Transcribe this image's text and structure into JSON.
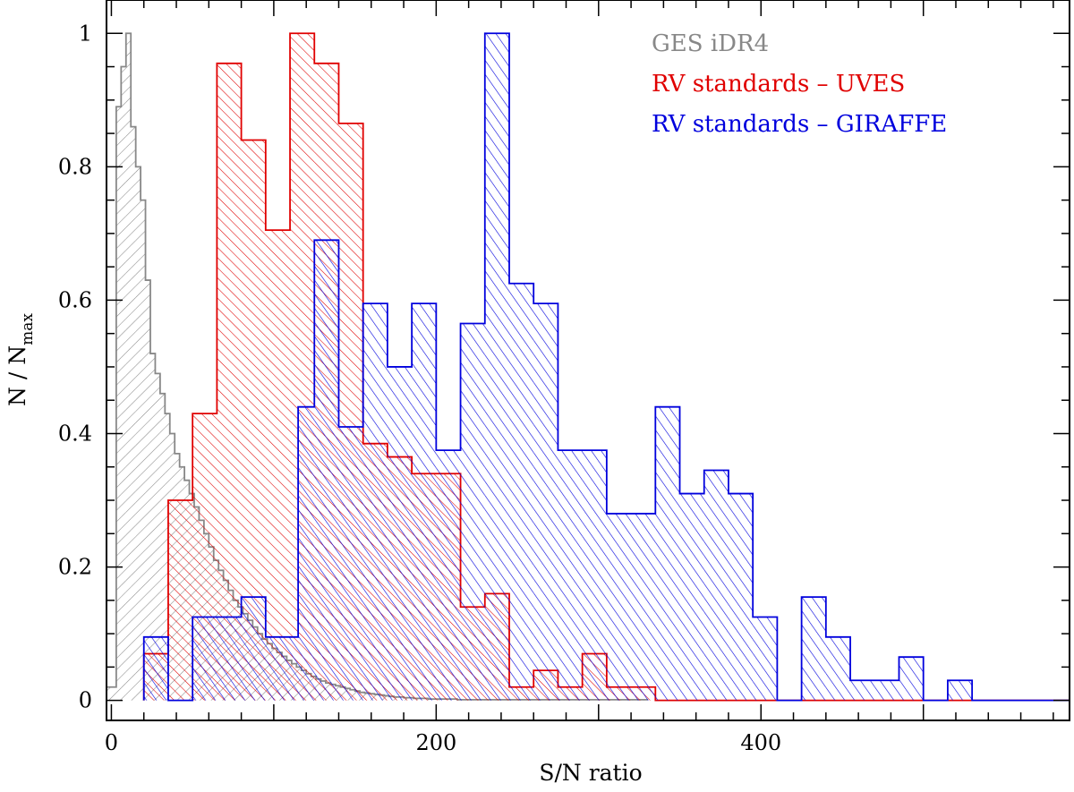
{
  "chart_data": {
    "type": "histogram",
    "xlabel": "S/N ratio",
    "ylabel": {
      "main": "N / N",
      "sub": "max"
    },
    "xlim": [
      -3,
      590
    ],
    "ylim": [
      -0.03,
      1.05
    ],
    "xticks": [
      {
        "value": 0,
        "label": "0"
      },
      {
        "value": 200,
        "label": "200"
      },
      {
        "value": 400,
        "label": "400"
      }
    ],
    "yticks": [
      {
        "value": 0,
        "label": "0"
      },
      {
        "value": 0.2,
        "label": "0.2"
      },
      {
        "value": 0.4,
        "label": "0.4"
      },
      {
        "value": 0.6,
        "label": "0.6"
      },
      {
        "value": 0.8,
        "label": "0.8"
      },
      {
        "value": 1,
        "label": "1"
      }
    ],
    "legend": {
      "position": "top-right"
    },
    "series": [
      {
        "name": "GES iDR4",
        "color": "#888888",
        "hatch": "back-diagonal",
        "x0": -3,
        "binWidth": 3,
        "values": [
          0.02,
          0.02,
          0.89,
          0.95,
          1.0,
          0.86,
          0.8,
          0.75,
          0.63,
          0.52,
          0.49,
          0.46,
          0.43,
          0.4,
          0.37,
          0.35,
          0.33,
          0.31,
          0.29,
          0.27,
          0.25,
          0.23,
          0.21,
          0.195,
          0.18,
          0.165,
          0.15,
          0.14,
          0.13,
          0.12,
          0.11,
          0.1,
          0.092,
          0.085,
          0.078,
          0.072,
          0.066,
          0.06,
          0.055,
          0.05,
          0.045,
          0.04,
          0.036,
          0.032,
          0.029,
          0.026,
          0.024,
          0.022,
          0.02,
          0.018,
          0.016,
          0.014,
          0.012,
          0.011,
          0.01,
          0.009,
          0.008,
          0.007,
          0.006,
          0.005,
          0.005,
          0.004,
          0.004,
          0.003,
          0.003,
          0.003,
          0.002,
          0.002,
          0.002,
          0.002,
          0.002,
          0.002,
          0.001,
          0.001,
          0.001,
          0.001,
          0.001,
          0.001,
          0.001,
          0.001,
          0.001,
          0.001,
          0.001,
          0.001,
          0.001,
          0.001,
          0.001,
          0.001,
          0.001,
          0.001,
          0.001,
          0.001,
          0.001,
          0.001,
          0.001,
          0.001,
          0.001,
          0.001,
          0.001,
          0.001,
          0.001,
          0.001,
          0.001,
          0.001,
          0.001,
          0.001,
          0.001,
          0.001,
          0.001,
          0.001,
          0.001
        ]
      },
      {
        "name": "RV standards – UVES",
        "color": "#e00000",
        "hatch": "forward-diagonal",
        "x0": 20,
        "binWidth": 15,
        "values": [
          0.07,
          0.3,
          0.43,
          0.955,
          0.84,
          0.705,
          1.0,
          0.955,
          0.865,
          0.385,
          0.365,
          0.34,
          0.34,
          0.14,
          0.16,
          0.02,
          0.045,
          0.02,
          0.07,
          0.02,
          0.02,
          0,
          0,
          0,
          0,
          0,
          0,
          0,
          0,
          0,
          0,
          0,
          0,
          0,
          0,
          0,
          0,
          0
        ]
      },
      {
        "name": "RV standards – GIRAFFE",
        "color": "#0000dd",
        "hatch": "forward-diagonal-steep",
        "edges": [
          20,
          35,
          50,
          65,
          80,
          95,
          105,
          115,
          125,
          140,
          155,
          170,
          185,
          200,
          215,
          230,
          245,
          260,
          275,
          290,
          305,
          320,
          335,
          350,
          365,
          380,
          395,
          410,
          425,
          440,
          455,
          470,
          485,
          500,
          515,
          530,
          545,
          590
        ],
        "values": [
          0.095,
          0.0,
          0.125,
          0.125,
          0.155,
          0.095,
          0.095,
          0.44,
          0.69,
          0.41,
          0.595,
          0.5,
          0.595,
          0.375,
          0.565,
          1.0,
          0.625,
          0.595,
          0.375,
          0.375,
          0.28,
          0.28,
          0.44,
          0.31,
          0.345,
          0.31,
          0.125,
          0.0,
          0.155,
          0.095,
          0.03,
          0.03,
          0.065,
          0.0,
          0.03,
          0.0,
          0.0
        ]
      }
    ]
  }
}
